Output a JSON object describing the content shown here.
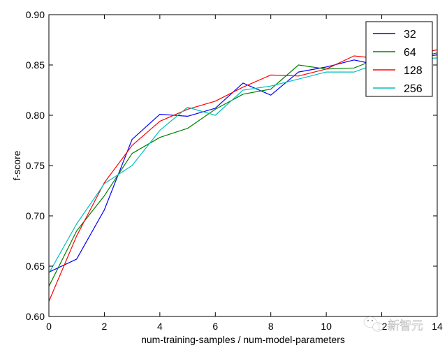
{
  "chart_data": {
    "type": "line",
    "title": "",
    "xlabel": "num-training-samples / num-model-parameters",
    "ylabel": "f-score",
    "xlim": [
      0,
      14
    ],
    "ylim": [
      0.6,
      0.9
    ],
    "xticks": [
      "0",
      "2",
      "4",
      "6",
      "8",
      "10",
      "12",
      "14"
    ],
    "yticks": [
      "0.60",
      "0.65",
      "0.70",
      "0.75",
      "0.80",
      "0.85",
      "0.90"
    ],
    "grid": false,
    "legend_position": "top-right",
    "x": [
      0,
      1,
      2,
      3,
      4,
      5,
      6,
      7,
      8,
      9,
      10,
      11,
      12,
      13,
      14
    ],
    "series": [
      {
        "name": "32",
        "color": "#0000ff",
        "values": [
          0.644,
          0.657,
          0.706,
          0.776,
          0.801,
          0.799,
          0.807,
          0.832,
          0.82,
          0.843,
          0.848,
          0.855,
          0.849,
          0.857,
          0.86
        ]
      },
      {
        "name": "64",
        "color": "#008000",
        "values": [
          0.63,
          0.685,
          0.72,
          0.762,
          0.778,
          0.787,
          0.806,
          0.821,
          0.826,
          0.85,
          0.846,
          0.847,
          0.858,
          0.856,
          0.862
        ]
      },
      {
        "name": "128",
        "color": "#ff0000",
        "values": [
          0.615,
          0.68,
          0.733,
          0.77,
          0.794,
          0.806,
          0.814,
          0.828,
          0.84,
          0.839,
          0.846,
          0.859,
          0.856,
          0.86,
          0.865
        ]
      },
      {
        "name": "256",
        "color": "#00bfbf",
        "values": [
          0.643,
          0.692,
          0.732,
          0.75,
          0.785,
          0.808,
          0.8,
          0.825,
          0.829,
          0.836,
          0.843,
          0.843,
          0.853,
          0.855,
          0.857
        ]
      }
    ]
  },
  "watermark": {
    "text": "新智元",
    "icon": "wechat-icon"
  }
}
